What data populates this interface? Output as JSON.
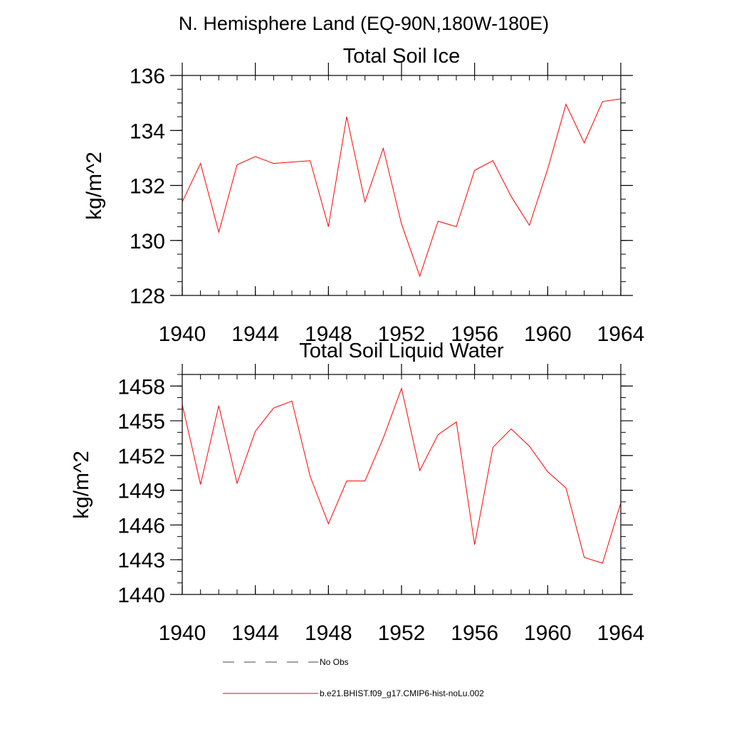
{
  "figure_title": "N. Hemisphere Land (EQ-90N,180W-180E)",
  "legend": {
    "entries": [
      {
        "label": "No Obs",
        "color": "#444444",
        "style": "dashed"
      },
      {
        "label": "b.e21.BHIST.f09_g17.CMIP6-hist-noLu.002",
        "color": "#ff0000",
        "style": "solid"
      }
    ]
  },
  "chart_data": [
    {
      "type": "line",
      "title": "Total Soil Ice",
      "xlabel": "",
      "ylabel": "kg/m^2",
      "xlim": [
        1940,
        1964
      ],
      "ylim": [
        128,
        136
      ],
      "x_ticks": [
        1940,
        1944,
        1948,
        1952,
        1956,
        1960,
        1964
      ],
      "y_ticks": [
        128,
        130,
        132,
        134,
        136
      ],
      "series": [
        {
          "name": "b.e21.BHIST.f09_g17.CMIP6-hist-noLu.002",
          "color": "#ff0000",
          "x": [
            1940,
            1941,
            1942,
            1943,
            1944,
            1945,
            1946,
            1947,
            1948,
            1949,
            1950,
            1951,
            1952,
            1953,
            1954,
            1955,
            1956,
            1957,
            1958,
            1959,
            1960,
            1961,
            1962,
            1963,
            1964
          ],
          "values": [
            131.4,
            132.8,
            130.3,
            132.75,
            133.05,
            132.8,
            132.85,
            132.9,
            130.5,
            134.5,
            131.4,
            133.35,
            130.6,
            128.7,
            130.7,
            130.5,
            132.55,
            132.9,
            131.6,
            130.55,
            132.6,
            134.95,
            133.55,
            135.05,
            135.15
          ]
        }
      ]
    },
    {
      "type": "line",
      "title": "Total Soil Liquid Water",
      "xlabel": "",
      "ylabel": "kg/m^2",
      "xlim": [
        1940,
        1964
      ],
      "ylim": [
        1440,
        1459
      ],
      "x_ticks": [
        1940,
        1944,
        1948,
        1952,
        1956,
        1960,
        1964
      ],
      "y_ticks": [
        1440,
        1443,
        1446,
        1449,
        1452,
        1455,
        1458
      ],
      "series": [
        {
          "name": "b.e21.BHIST.f09_g17.CMIP6-hist-noLu.002",
          "color": "#ff0000",
          "x": [
            1940,
            1941,
            1942,
            1943,
            1944,
            1945,
            1946,
            1947,
            1948,
            1949,
            1950,
            1951,
            1952,
            1953,
            1954,
            1955,
            1956,
            1957,
            1958,
            1959,
            1960,
            1961,
            1962,
            1963,
            1964
          ],
          "values": [
            1456.4,
            1449.5,
            1456.3,
            1449.6,
            1454.1,
            1456.1,
            1456.7,
            1450.2,
            1446.1,
            1449.8,
            1449.8,
            1453.5,
            1457.8,
            1450.7,
            1453.8,
            1454.9,
            1444.3,
            1452.7,
            1454.3,
            1452.8,
            1450.6,
            1449.2,
            1443.2,
            1442.7,
            1447.9
          ]
        }
      ]
    }
  ]
}
